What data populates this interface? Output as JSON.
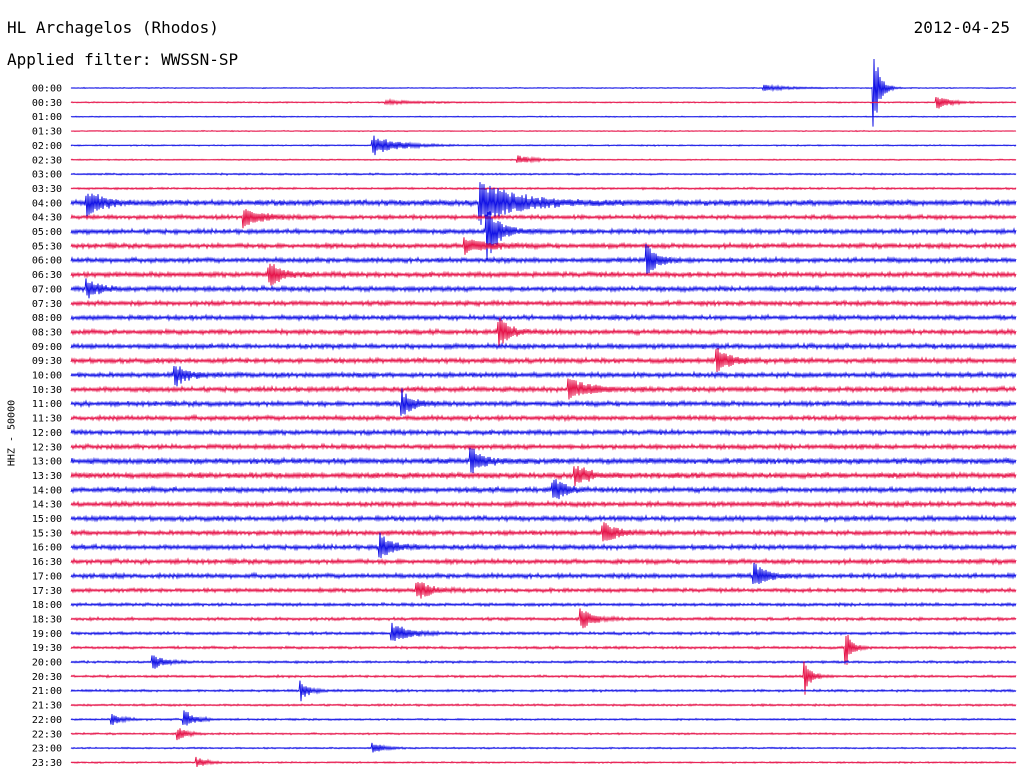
{
  "header": {
    "station": "HL Archagelos (Rhodos)",
    "date": "2012-04-25",
    "filter": "Applied filter: WWSSN-SP"
  },
  "channel_label": "HHZ - 50000",
  "colors": {
    "odd_trace": "#1414e6",
    "even_trace": "#e6144a",
    "text": "#000000"
  },
  "chart_data": {
    "type": "line",
    "title": "HL Archagelos (Rhodos)",
    "subtitle": "Applied filter: WWSSN-SP",
    "ylabel": "HHZ - 50000",
    "rows": [
      "00:00",
      "00:30",
      "01:00",
      "01:30",
      "02:00",
      "02:30",
      "03:00",
      "03:30",
      "04:00",
      "04:30",
      "05:00",
      "05:30",
      "06:00",
      "06:30",
      "07:00",
      "07:30",
      "08:00",
      "08:30",
      "09:00",
      "09:30",
      "10:00",
      "10:30",
      "11:00",
      "11:30",
      "12:00",
      "12:30",
      "13:00",
      "13:30",
      "14:00",
      "14:30",
      "15:00",
      "15:30",
      "16:00",
      "16:30",
      "17:00",
      "17:30",
      "18:00",
      "18:30",
      "19:00",
      "19:30",
      "20:00",
      "20:30",
      "21:00",
      "21:30",
      "22:00",
      "22:30",
      "23:00",
      "23:30"
    ],
    "noise_level": [
      0.4,
      0.5,
      0.4,
      0.4,
      0.5,
      0.5,
      0.7,
      0.8,
      2.2,
      1.6,
      1.8,
      1.8,
      1.9,
      1.9,
      1.9,
      1.8,
      1.8,
      1.8,
      1.9,
      1.9,
      1.9,
      1.9,
      1.9,
      1.8,
      1.8,
      1.8,
      2.2,
      2.2,
      2.0,
      1.9,
      1.9,
      1.8,
      1.8,
      1.8,
      1.8,
      1.5,
      1.2,
      1.2,
      1.1,
      1.0,
      0.9,
      0.9,
      0.9,
      0.8,
      0.7,
      0.7,
      0.6,
      0.6
    ],
    "events": [
      {
        "row": 0,
        "minute": 25.5,
        "amp": 40,
        "dur": 0.3
      },
      {
        "row": 0,
        "minute": 22.0,
        "amp": 3,
        "dur": 1.2
      },
      {
        "row": 1,
        "minute": 27.5,
        "amp": 8,
        "dur": 0.6
      },
      {
        "row": 1,
        "minute": 10.0,
        "amp": 2,
        "dur": 1.5
      },
      {
        "row": 4,
        "minute": 9.6,
        "amp": 10,
        "dur": 1.2
      },
      {
        "row": 5,
        "minute": 14.2,
        "amp": 4,
        "dur": 0.8
      },
      {
        "row": 8,
        "minute": 13.0,
        "amp": 22,
        "dur": 1.8
      },
      {
        "row": 8,
        "minute": 0.5,
        "amp": 12,
        "dur": 0.8
      },
      {
        "row": 9,
        "minute": 5.5,
        "amp": 10,
        "dur": 0.8
      },
      {
        "row": 10,
        "minute": 13.2,
        "amp": 30,
        "dur": 0.6
      },
      {
        "row": 11,
        "minute": 12.5,
        "amp": 9,
        "dur": 1.0
      },
      {
        "row": 12,
        "minute": 18.3,
        "amp": 16,
        "dur": 0.5
      },
      {
        "row": 13,
        "minute": 6.3,
        "amp": 12,
        "dur": 0.6
      },
      {
        "row": 14,
        "minute": 0.5,
        "amp": 10,
        "dur": 0.6
      },
      {
        "row": 17,
        "minute": 13.6,
        "amp": 14,
        "dur": 0.6
      },
      {
        "row": 19,
        "minute": 20.5,
        "amp": 14,
        "dur": 0.6
      },
      {
        "row": 20,
        "minute": 3.3,
        "amp": 12,
        "dur": 0.6
      },
      {
        "row": 21,
        "minute": 15.8,
        "amp": 11,
        "dur": 1.0
      },
      {
        "row": 22,
        "minute": 10.5,
        "amp": 14,
        "dur": 0.5
      },
      {
        "row": 26,
        "minute": 12.7,
        "amp": 14,
        "dur": 0.6
      },
      {
        "row": 27,
        "minute": 16.0,
        "amp": 12,
        "dur": 0.6
      },
      {
        "row": 28,
        "minute": 15.3,
        "amp": 12,
        "dur": 0.6
      },
      {
        "row": 31,
        "minute": 16.9,
        "amp": 12,
        "dur": 0.6
      },
      {
        "row": 32,
        "minute": 9.8,
        "amp": 14,
        "dur": 0.6
      },
      {
        "row": 34,
        "minute": 21.7,
        "amp": 12,
        "dur": 0.6
      },
      {
        "row": 35,
        "minute": 11.0,
        "amp": 10,
        "dur": 0.6
      },
      {
        "row": 37,
        "minute": 16.2,
        "amp": 10,
        "dur": 0.6
      },
      {
        "row": 38,
        "minute": 10.2,
        "amp": 10,
        "dur": 0.8
      },
      {
        "row": 39,
        "minute": 24.6,
        "amp": 22,
        "dur": 0.3
      },
      {
        "row": 40,
        "minute": 2.6,
        "amp": 8,
        "dur": 0.5
      },
      {
        "row": 41,
        "minute": 23.3,
        "amp": 18,
        "dur": 0.3
      },
      {
        "row": 42,
        "minute": 7.3,
        "amp": 10,
        "dur": 0.4
      },
      {
        "row": 44,
        "minute": 3.6,
        "amp": 10,
        "dur": 0.5
      },
      {
        "row": 44,
        "minute": 1.3,
        "amp": 6,
        "dur": 0.5
      },
      {
        "row": 45,
        "minute": 3.4,
        "amp": 6,
        "dur": 0.5
      },
      {
        "row": 46,
        "minute": 9.6,
        "amp": 5,
        "dur": 0.5
      },
      {
        "row": 47,
        "minute": 4.0,
        "amp": 5,
        "dur": 0.5
      }
    ]
  }
}
